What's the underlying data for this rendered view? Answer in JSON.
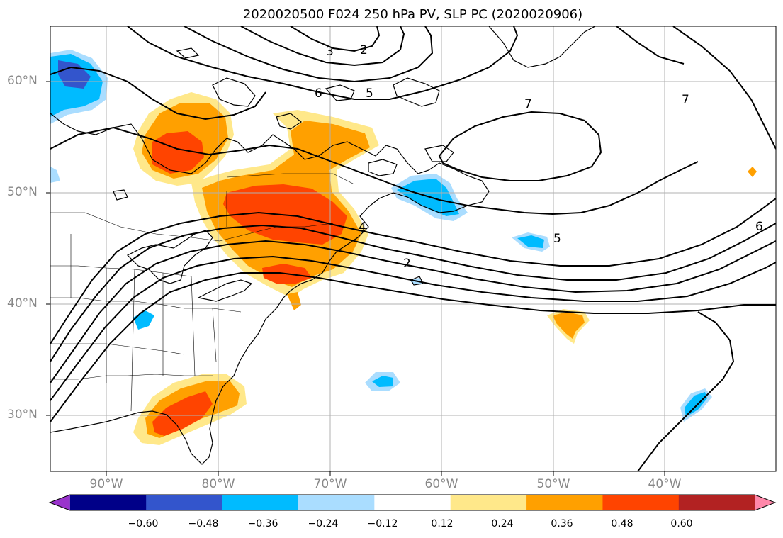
{
  "title": "2020020500 F024 250 hPa PV, SLP PC (2020020906)",
  "map": {
    "lon_range": [
      -95,
      -30
    ],
    "lat_range": [
      25,
      65
    ],
    "lat_labels": [
      "60°N",
      "50°N",
      "40°N",
      "30°N"
    ],
    "lon_labels": [
      "90°W",
      "80°W",
      "70°W",
      "60°W",
      "50°W",
      "40°W"
    ],
    "contour_labels": [
      "7",
      "7",
      "6",
      "6",
      "5",
      "5",
      "4",
      "3",
      "2",
      "2"
    ]
  },
  "colorbar": {
    "ticks": [
      "−0.60",
      "−0.48",
      "−0.36",
      "−0.24",
      "−0.12",
      "0.12",
      "0.24",
      "0.36",
      "0.48",
      "0.60"
    ],
    "colors": [
      "#9933cc",
      "#000088",
      "#3355cc",
      "#00bbff",
      "#aaddff",
      "#ffffff",
      "#ffe88a",
      "#ffa000",
      "#ff4400",
      "#b22222",
      "#ff88aa"
    ]
  }
}
